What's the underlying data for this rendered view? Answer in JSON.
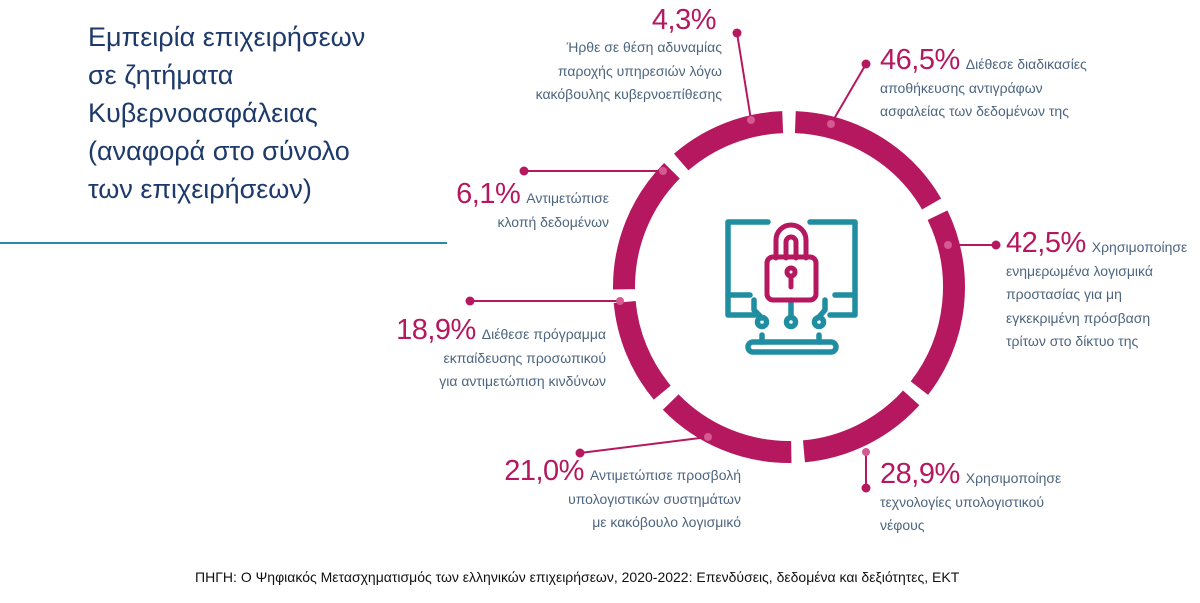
{
  "title_lines": [
    "Εμπειρία επιχειρήσεων",
    "σε ζητήματα",
    "Κυβερνοασφάλειας",
    "(αναφορά στο σύνολο",
    "των επιχειρήσεων)"
  ],
  "colors": {
    "accent": "#b5185f",
    "title": "#1d3a6b",
    "text": "#4d6580",
    "icon_teal": "#1f8ea0",
    "divider": "#2b8aa6"
  },
  "center_icon": "monitor-lock-icon",
  "items": [
    {
      "value": "4,3%",
      "lines": [
        "Ήρθε σε θέση αδυναμίας",
        "παροχής υπηρεσιών λόγω",
        "κακόβουλης κυβερνοεπίθεσης"
      ]
    },
    {
      "value": "46,5%",
      "lines": [
        "Διέθεσε διαδικασίες",
        "αποθήκευσης αντιγράφων",
        "ασφαλείας των δεδομένων της"
      ]
    },
    {
      "value": "6,1%",
      "lines": [
        "Αντιμετώπισε",
        "κλοπή δεδομένων"
      ]
    },
    {
      "value": "42,5%",
      "lines": [
        "Χρησιμοποίησε",
        "ενημερωμένα λογισμικά",
        "προστασίας για μη",
        "εγκεκριμένη πρόσβαση",
        "τρίτων στο δίκτυο της"
      ]
    },
    {
      "value": "18,9%",
      "lines": [
        "Διέθεσε πρόγραμμα",
        "εκπαίδευσης προσωπικού",
        "για αντιμετώπιση κινδύνων"
      ]
    },
    {
      "value": "21,0%",
      "lines": [
        "Αντιμετώπισε προσβολή",
        "υπολογιστικών συστημάτων",
        "με κακόβουλο λογισμικό"
      ]
    },
    {
      "value": "28,9%",
      "lines": [
        "Χρησιμοποίησε",
        "τεχνολογίες υπολογιστικού",
        "νέφους"
      ]
    }
  ],
  "source": "ΠΗΓΗ: Ο Ψηφιακός Μετασχηματισμός των ελληνικών επιχειρήσεων, 2020-2022: Επενδύσεις, δεδομένα και δεξιότητες, ΕΚΤ"
}
